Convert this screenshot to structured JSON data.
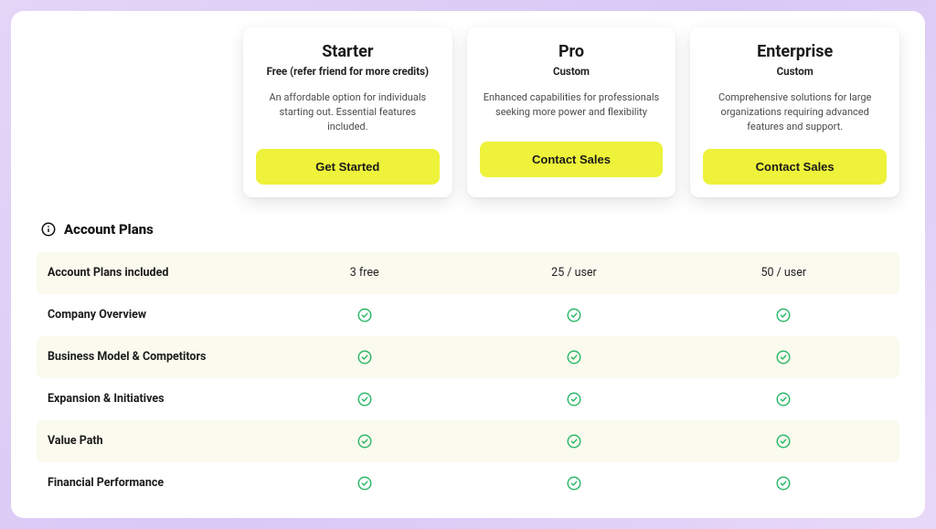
{
  "colors": {
    "cta_bg": "#eef23a",
    "check_stroke": "#2fb96b",
    "row_alt_bg": "#fbfaef",
    "text_primary": "#1a1a1a",
    "text_muted": "#4a4a4a",
    "page_bg": "#ffffff"
  },
  "plans": [
    {
      "title": "Starter",
      "subtitle": "Free (refer friend for more credits)",
      "description": "An affordable option for individuals starting out. Essential features included.",
      "cta": "Get Started"
    },
    {
      "title": "Pro",
      "subtitle": "Custom",
      "description": "Enhanced capabilities for professionals seeking more power and flexibility",
      "cta": "Contact Sales"
    },
    {
      "title": "Enterprise",
      "subtitle": "Custom",
      "description": "Comprehensive solutions for large organizations requiring advanced features and support.",
      "cta": "Contact Sales"
    }
  ],
  "section": {
    "title": "Account Plans"
  },
  "feature_rows": [
    {
      "label": "Account Plans included",
      "values": [
        "3 free",
        "25 / user",
        "50 / user"
      ],
      "check": false
    },
    {
      "label": "Company Overview",
      "values": [
        true,
        true,
        true
      ],
      "check": true
    },
    {
      "label": "Business Model & Competitors",
      "values": [
        true,
        true,
        true
      ],
      "check": true
    },
    {
      "label": "Expansion & Initiatives",
      "values": [
        true,
        true,
        true
      ],
      "check": true
    },
    {
      "label": "Value Path",
      "values": [
        true,
        true,
        true
      ],
      "check": true
    },
    {
      "label": "Financial Performance",
      "values": [
        true,
        true,
        true
      ],
      "check": true
    }
  ]
}
